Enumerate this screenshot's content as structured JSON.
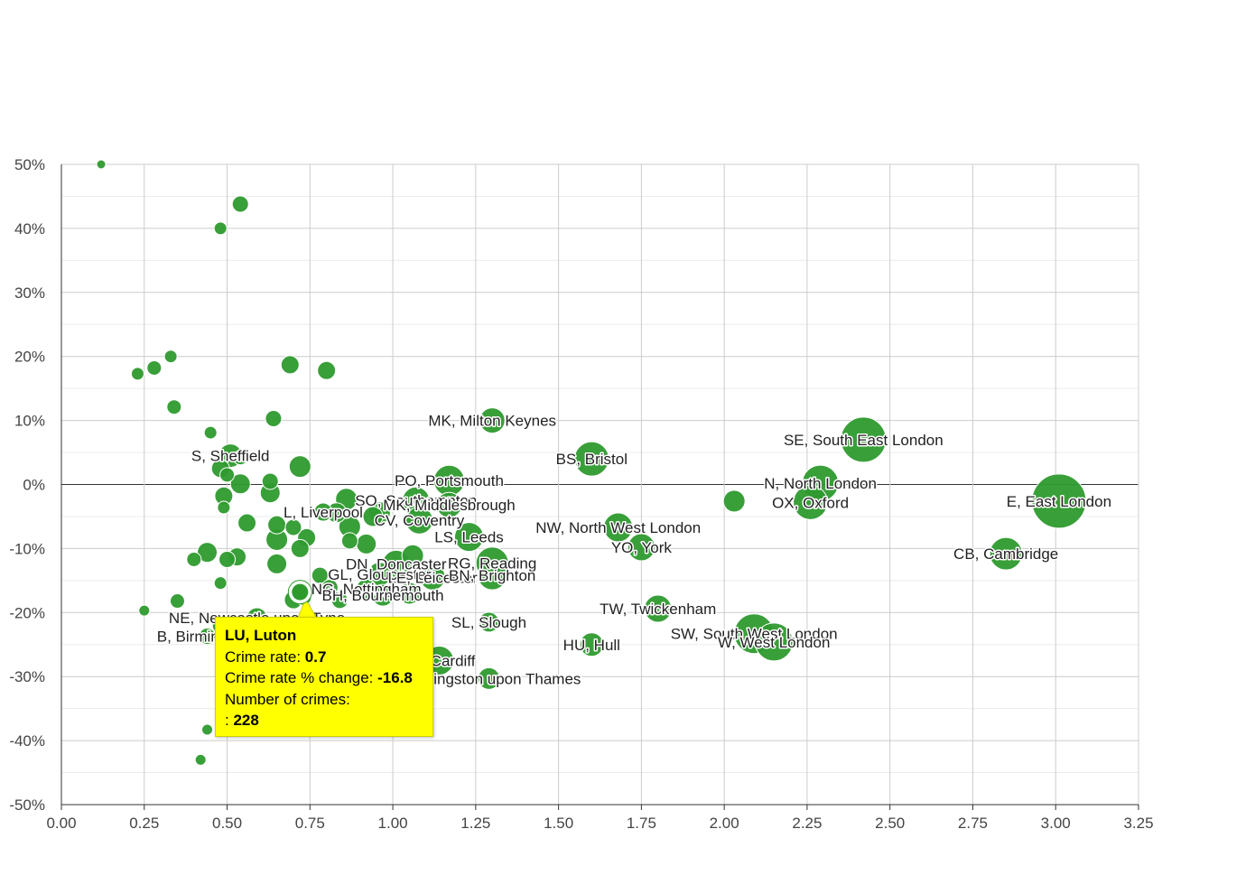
{
  "chart_data": {
    "type": "scatter",
    "title": "",
    "xlabel": "",
    "ylabel": "",
    "xlim": [
      0,
      3.25
    ],
    "ylim": [
      -50,
      50
    ],
    "x_ticks": [
      "0.00",
      "0.25",
      "0.50",
      "0.75",
      "1.00",
      "1.25",
      "1.50",
      "1.75",
      "2.00",
      "2.25",
      "2.50",
      "2.75",
      "3.00",
      "3.25"
    ],
    "y_ticks": [
      "-50%",
      "-40%",
      "-30%",
      "-20%",
      "-10%",
      "0%",
      "10%",
      "20%",
      "30%",
      "40%",
      "50%"
    ],
    "grid": true,
    "color": "#2e9a2e",
    "points": [
      {
        "x": 0.12,
        "y": 50,
        "r": 5,
        "label": ""
      },
      {
        "x": 0.54,
        "y": 43.8,
        "r": 9,
        "label": ""
      },
      {
        "x": 0.48,
        "y": 40,
        "r": 7,
        "label": ""
      },
      {
        "x": 0.23,
        "y": 17.3,
        "r": 7,
        "label": ""
      },
      {
        "x": 0.28,
        "y": 18.2,
        "r": 8,
        "label": ""
      },
      {
        "x": 0.33,
        "y": 20,
        "r": 7,
        "label": ""
      },
      {
        "x": 0.69,
        "y": 18.7,
        "r": 10,
        "label": ""
      },
      {
        "x": 0.8,
        "y": 17.8,
        "r": 10,
        "label": ""
      },
      {
        "x": 0.34,
        "y": 12.1,
        "r": 8,
        "label": ""
      },
      {
        "x": 0.45,
        "y": 8.1,
        "r": 7,
        "label": ""
      },
      {
        "x": 0.64,
        "y": 10.3,
        "r": 9,
        "label": ""
      },
      {
        "x": 1.3,
        "y": 10,
        "r": 14,
        "label": "MK, Milton Keynes"
      },
      {
        "x": 1.6,
        "y": 4,
        "r": 19,
        "label": "BS, Bristol"
      },
      {
        "x": 2.42,
        "y": 7,
        "r": 25,
        "label": "SE, South East London"
      },
      {
        "x": 0.51,
        "y": 4.5,
        "r": 13,
        "label": "S, Sheffield"
      },
      {
        "x": 0.54,
        "y": 4.2,
        "r": 8,
        "label": ""
      },
      {
        "x": 0.48,
        "y": 2.5,
        "r": 10,
        "label": ""
      },
      {
        "x": 0.72,
        "y": 2.8,
        "r": 12,
        "label": ""
      },
      {
        "x": 0.5,
        "y": 1.5,
        "r": 8,
        "label": ""
      },
      {
        "x": 0.54,
        "y": 0.1,
        "r": 11,
        "label": ""
      },
      {
        "x": 0.63,
        "y": 0.5,
        "r": 9,
        "label": ""
      },
      {
        "x": 0.63,
        "y": -1.3,
        "r": 11,
        "label": ""
      },
      {
        "x": 0.49,
        "y": -1.8,
        "r": 10,
        "label": ""
      },
      {
        "x": 0.49,
        "y": -3.6,
        "r": 7,
        "label": ""
      },
      {
        "x": 1.17,
        "y": 0.6,
        "r": 17,
        "label": "PO, Portsmouth"
      },
      {
        "x": 2.29,
        "y": 0.2,
        "r": 20,
        "label": "N, North London"
      },
      {
        "x": 2.26,
        "y": -2.8,
        "r": 19,
        "label": "OX, Oxford"
      },
      {
        "x": 2.03,
        "y": -2.6,
        "r": 12,
        "label": ""
      },
      {
        "x": 3.01,
        "y": -2.6,
        "r": 30,
        "label": "E, East London"
      },
      {
        "x": 0.86,
        "y": -2.3,
        "r": 12,
        "label": ""
      },
      {
        "x": 1.07,
        "y": -2.5,
        "r": 15,
        "label": "SO, Southampton"
      },
      {
        "x": 1.17,
        "y": -3.2,
        "r": 14,
        "label": "MK, Middlesbrough"
      },
      {
        "x": 0.83,
        "y": -4.4,
        "r": 11,
        "label": ""
      },
      {
        "x": 0.79,
        "y": -4.3,
        "r": 10,
        "label": "L, Liverpool"
      },
      {
        "x": 0.96,
        "y": -4.4,
        "r": 12,
        "label": ""
      },
      {
        "x": 1.08,
        "y": -5.6,
        "r": 15,
        "label": "CV, Coventry"
      },
      {
        "x": 0.94,
        "y": -5,
        "r": 11,
        "label": ""
      },
      {
        "x": 0.56,
        "y": -6,
        "r": 10,
        "label": ""
      },
      {
        "x": 0.65,
        "y": -6.3,
        "r": 10,
        "label": ""
      },
      {
        "x": 0.7,
        "y": -6.7,
        "r": 9,
        "label": ""
      },
      {
        "x": 0.87,
        "y": -6.6,
        "r": 12,
        "label": ""
      },
      {
        "x": 1.68,
        "y": -6.7,
        "r": 16,
        "label": "NW, North West London"
      },
      {
        "x": 0.65,
        "y": -8.6,
        "r": 12,
        "label": ""
      },
      {
        "x": 0.74,
        "y": -8.3,
        "r": 10,
        "label": ""
      },
      {
        "x": 0.87,
        "y": -8.8,
        "r": 9,
        "label": ""
      },
      {
        "x": 0.92,
        "y": -9.3,
        "r": 11,
        "label": ""
      },
      {
        "x": 1.23,
        "y": -8.2,
        "r": 16,
        "label": "LS, Leeds"
      },
      {
        "x": 1.75,
        "y": -9.8,
        "r": 15,
        "label": "YO, York"
      },
      {
        "x": 0.72,
        "y": -10,
        "r": 10,
        "label": ""
      },
      {
        "x": 0.44,
        "y": -10.6,
        "r": 11,
        "label": ""
      },
      {
        "x": 0.4,
        "y": -11.7,
        "r": 8,
        "label": ""
      },
      {
        "x": 0.5,
        "y": -11.7,
        "r": 9,
        "label": ""
      },
      {
        "x": 0.53,
        "y": -11.3,
        "r": 10,
        "label": ""
      },
      {
        "x": 1.06,
        "y": -11.1,
        "r": 12,
        "label": ""
      },
      {
        "x": 0.65,
        "y": -12.4,
        "r": 11,
        "label": ""
      },
      {
        "x": 1.01,
        "y": -12.4,
        "r": 15,
        "label": "DN, Doncaster"
      },
      {
        "x": 1.3,
        "y": -12.3,
        "r": 18,
        "label": "RG, Reading"
      },
      {
        "x": 2.85,
        "y": -10.8,
        "r": 18,
        "label": "CB, Cambridge"
      },
      {
        "x": 0.78,
        "y": -14.2,
        "r": 9,
        "label": ""
      },
      {
        "x": 0.96,
        "y": -14,
        "r": 13,
        "label": "GL, Gloucester"
      },
      {
        "x": 1.12,
        "y": -14.5,
        "r": 14,
        "label": "LE, Leicester"
      },
      {
        "x": 1.3,
        "y": -14.2,
        "r": 16,
        "label": "BN, Brighton"
      },
      {
        "x": 0.48,
        "y": -15.4,
        "r": 7,
        "label": ""
      },
      {
        "x": 0.81,
        "y": -16.1,
        "r": 9,
        "label": ""
      },
      {
        "x": 0.92,
        "y": -16.3,
        "r": 11,
        "label": "NG, Nottingham"
      },
      {
        "x": 0.97,
        "y": -17.3,
        "r": 12,
        "label": "BH, Bournemouth"
      },
      {
        "x": 1.05,
        "y": -17,
        "r": 12,
        "label": ""
      },
      {
        "x": 0.35,
        "y": -18.2,
        "r": 8,
        "label": ""
      },
      {
        "x": 0.7,
        "y": -18,
        "r": 10,
        "label": ""
      },
      {
        "x": 0.73,
        "y": -17.6,
        "r": 9,
        "label": ""
      },
      {
        "x": 0.84,
        "y": -18.1,
        "r": 9,
        "label": ""
      },
      {
        "x": 0.25,
        "y": -19.7,
        "r": 6,
        "label": ""
      },
      {
        "x": 0.59,
        "y": -20.8,
        "r": 11,
        "label": "NE, Newcastle upon Tyne"
      },
      {
        "x": 1.8,
        "y": -19.4,
        "r": 15,
        "label": "TW, Twickenham"
      },
      {
        "x": 1.29,
        "y": -21.5,
        "r": 11,
        "label": "SL, Slough"
      },
      {
        "x": 2.09,
        "y": -23.3,
        "r": 22,
        "label": "SW, South West London"
      },
      {
        "x": 2.15,
        "y": -24.6,
        "r": 21,
        "label": "W, West London"
      },
      {
        "x": 0.44,
        "y": -23.7,
        "r": 9,
        "label": "B, Birmingham"
      },
      {
        "x": 0.48,
        "y": -22,
        "r": 9,
        "label": ""
      },
      {
        "x": 1.6,
        "y": -25,
        "r": 13,
        "label": "HU, Hull"
      },
      {
        "x": 1.14,
        "y": -27.5,
        "r": 16,
        "label": "CF, Cardiff"
      },
      {
        "x": 1.29,
        "y": -30.3,
        "r": 12,
        "label": "KT, Kingston upon Thames"
      },
      {
        "x": 0.44,
        "y": -38.3,
        "r": 6,
        "label": ""
      },
      {
        "x": 0.42,
        "y": -43,
        "r": 6,
        "label": ""
      }
    ],
    "highlight": {
      "x": 0.72,
      "y": -16.8,
      "r": 10,
      "label": "LU, Luton"
    }
  },
  "tooltip": {
    "title": "LU, Luton",
    "rate_label": "Crime rate: ",
    "rate_value": "0.7",
    "change_label": "Crime rate % change: ",
    "change_value": "-16.8",
    "count_label": "Number of crimes:",
    "count_prefix": ": ",
    "count_value": "228"
  }
}
